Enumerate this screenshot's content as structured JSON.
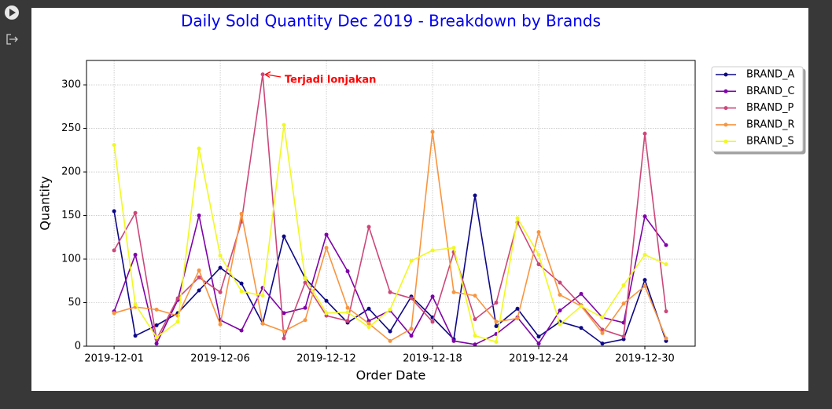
{
  "chart_data": {
    "type": "line",
    "title": "Daily Sold Quantity Dec 2019 - Breakdown by Brands",
    "xlabel": "Order Date",
    "ylabel": "Quantity",
    "annotation": "Terjadi lonjakan",
    "categories": [
      "2019-12-01",
      null,
      null,
      null,
      null,
      "2019-12-06",
      null,
      null,
      null,
      null,
      "2019-12-12",
      null,
      null,
      null,
      null,
      "2019-12-18",
      null,
      null,
      null,
      null,
      "2019-12-24",
      null,
      null,
      null,
      null,
      "2019-12-30",
      null
    ],
    "series": [
      {
        "name": "BRAND_A",
        "color": "#0d0887",
        "values": [
          155,
          12,
          24,
          38,
          64,
          90,
          72,
          26,
          126,
          78,
          52,
          27,
          43,
          17,
          57,
          33,
          8,
          173,
          23,
          43,
          11,
          28,
          21,
          3,
          8,
          76,
          6
        ]
      },
      {
        "name": "BRAND_C",
        "color": "#7e03a8",
        "values": [
          40,
          105,
          3,
          53,
          150,
          30,
          18,
          67,
          38,
          44,
          128,
          86,
          29,
          41,
          12,
          57,
          6,
          2,
          14,
          33,
          3,
          41,
          60,
          33,
          27,
          149,
          116
        ]
      },
      {
        "name": "BRAND_P",
        "color": "#cc4778",
        "values": [
          110,
          153,
          8,
          55,
          79,
          62,
          143,
          312,
          9,
          73,
          35,
          29,
          137,
          62,
          55,
          28,
          108,
          31,
          50,
          142,
          94,
          73,
          47,
          19,
          11,
          244,
          40
        ]
      },
      {
        "name": "BRAND_R",
        "color": "#f89540",
        "values": [
          38,
          45,
          42,
          35,
          87,
          25,
          152,
          26,
          17,
          30,
          113,
          44,
          26,
          6,
          20,
          246,
          62,
          58,
          28,
          32,
          131,
          59,
          46,
          15,
          49,
          69,
          9
        ]
      },
      {
        "name": "BRAND_S",
        "color": "#f0f921",
        "values": [
          231,
          48,
          10,
          28,
          227,
          104,
          63,
          58,
          254,
          78,
          38,
          39,
          22,
          42,
          98,
          110,
          113,
          12,
          5,
          147,
          105,
          25,
          46,
          33,
          70,
          105,
          94
        ]
      }
    ],
    "xlim": [
      -1.3,
      27.37
    ],
    "ylim": [
      0,
      328
    ],
    "yticks": [
      0,
      50,
      100,
      150,
      200,
      250,
      300
    ],
    "grid": true
  }
}
